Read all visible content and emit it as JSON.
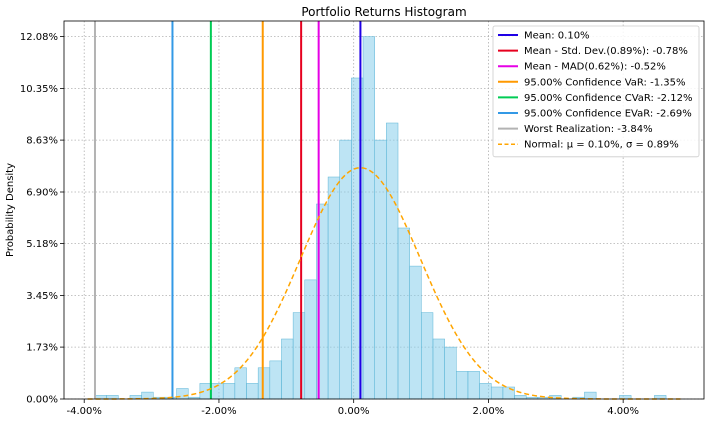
{
  "chart_data": {
    "type": "bar",
    "title": "Portfolio Returns Histogram",
    "xlabel": "",
    "ylabel": "Probability Density",
    "xlim": [
      -4.3,
      5.2
    ],
    "ylim": [
      0,
      12.6
    ],
    "xticks": [
      -4,
      -2,
      0,
      2,
      4
    ],
    "xtick_labels": [
      "-4.00%",
      "-2.00%",
      "0.00%",
      "2.00%",
      "4.00%"
    ],
    "yticks": [
      0,
      1.73,
      3.45,
      5.18,
      6.9,
      8.63,
      10.35,
      12.08
    ],
    "ytick_labels": [
      "0.00%",
      "1.73%",
      "3.45%",
      "5.18%",
      "6.90%",
      "8.63%",
      "10.35%",
      "12.08%"
    ],
    "grid": true,
    "legend_position": "top-right",
    "histogram": {
      "name": "",
      "color": "#87ceeb",
      "bin_edges": [
        -3.84,
        -3.667,
        -3.494,
        -3.321,
        -3.148,
        -2.975,
        -2.802,
        -2.629,
        -2.456,
        -2.283,
        -2.11,
        -1.937,
        -1.764,
        -1.591,
        -1.418,
        -1.245,
        -1.072,
        -0.899,
        -0.726,
        -0.553,
        -0.38,
        -0.207,
        -0.034,
        0.139,
        0.312,
        0.485,
        0.658,
        0.831,
        1.004,
        1.177,
        1.35,
        1.523,
        1.696,
        1.869,
        2.042,
        2.215,
        2.388,
        2.561,
        2.734,
        2.907,
        3.08,
        3.253,
        3.426,
        3.599,
        3.772,
        3.945,
        4.118,
        4.291,
        4.464,
        4.637,
        4.81
      ],
      "densities": [
        0.12,
        0.12,
        0.0,
        0.12,
        0.23,
        0.06,
        0.06,
        0.35,
        0.06,
        0.52,
        0.52,
        0.52,
        1.04,
        0.52,
        1.04,
        1.27,
        2.0,
        2.88,
        3.97,
        6.5,
        7.4,
        8.63,
        10.7,
        12.08,
        8.63,
        9.2,
        5.7,
        4.43,
        2.88,
        2.0,
        1.73,
        0.92,
        0.92,
        0.52,
        0.4,
        0.4,
        0.12,
        0.06,
        0.06,
        0.12,
        0.0,
        0.06,
        0.23,
        0.0,
        0.0,
        0.12,
        0.0,
        0.0,
        0.12,
        0.0
      ]
    },
    "vlines": [
      {
        "label": "Mean: 0.10%",
        "x": 0.1,
        "color": "#1f00e6"
      },
      {
        "label": "Mean - Std. Dev.(0.89%): -0.78%",
        "x": -0.78,
        "color": "#e6001f"
      },
      {
        "label": "Mean - MAD(0.62%): -0.52%",
        "x": -0.52,
        "color": "#e600e6"
      },
      {
        "label": "95.00% Confidence VaR: -1.35%",
        "x": -1.35,
        "color": "#ff9900"
      },
      {
        "label": "95.00% Confidence CVaR: -2.12%",
        "x": -2.12,
        "color": "#00cc55"
      },
      {
        "label": "95.00% Confidence EVaR: -2.69%",
        "x": -2.69,
        "color": "#3399e6"
      },
      {
        "label": "Worst Realization: -3.84%",
        "x": -3.84,
        "color": "#b3b3b3"
      }
    ],
    "normal_curve": {
      "label": "Normal: μ = 0.10%, σ = 0.89%",
      "mu": 0.1,
      "sigma": 0.89,
      "color": "#ffa500",
      "style": "dashed"
    }
  }
}
